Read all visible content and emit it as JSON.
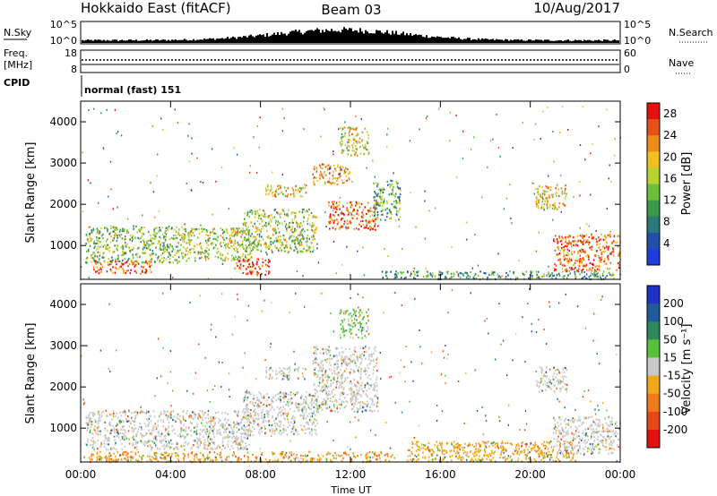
{
  "header": {
    "station": "Hokkaido East (fitACF)",
    "beam": "Beam 03",
    "date": "10/Aug/2017"
  },
  "top_strip": {
    "left_label_nsky": "N.Sky",
    "left_label_freq": "Freq.",
    "left_label_freq_unit": "[MHz]",
    "left_label_cpid": "CPID",
    "nsky_ticks": [
      "10^5",
      "10^0"
    ],
    "freq_ticks": [
      "18",
      "8"
    ],
    "right_label_nsearch": "N.Search",
    "right_label_nave": "Nave",
    "nsearch_ticks": [
      "10^5",
      "10^0"
    ],
    "nave_ticks": [
      "60",
      "0"
    ],
    "cpid_text": "normal (fast) 151"
  },
  "chart_data": [
    {
      "type": "heatmap",
      "panel": "power",
      "xlabel": "",
      "ylabel": "Slant Range [km]",
      "xlim": [
        0,
        24
      ],
      "ylim": [
        180,
        4500
      ],
      "yticks": [
        1000,
        2000,
        3000,
        4000
      ],
      "colorbar": {
        "label": "Power [dB]",
        "ticks": [
          4,
          8,
          12,
          16,
          20,
          24,
          28
        ],
        "range": [
          0,
          30
        ],
        "colors": [
          "#1f3ce0",
          "#2050a8",
          "#2a7a7a",
          "#3a9a4a",
          "#6cc13a",
          "#b8d230",
          "#f0c020",
          "#f08a18",
          "#e85018",
          "#e61010"
        ]
      },
      "echo_regions": [
        {
          "t0": 0.2,
          "t1": 4.6,
          "r0": 600,
          "r1": 1500,
          "mean": 14
        },
        {
          "t0": 0.5,
          "t1": 3.2,
          "r0": 350,
          "r1": 650,
          "mean": 26
        },
        {
          "t0": 4.5,
          "t1": 7.6,
          "r0": 650,
          "r1": 1450,
          "mean": 16
        },
        {
          "t0": 6.8,
          "t1": 8.4,
          "r0": 300,
          "r1": 700,
          "mean": 27
        },
        {
          "t0": 7.2,
          "t1": 10.5,
          "r0": 850,
          "r1": 1900,
          "mean": 15
        },
        {
          "t0": 8.2,
          "t1": 10.0,
          "r0": 2200,
          "r1": 2500,
          "mean": 20
        },
        {
          "t0": 10.3,
          "t1": 12.0,
          "r0": 2500,
          "r1": 3000,
          "mean": 22
        },
        {
          "t0": 11.0,
          "t1": 13.2,
          "r0": 1400,
          "r1": 2100,
          "mean": 24
        },
        {
          "t0": 13.0,
          "t1": 14.2,
          "r0": 1600,
          "r1": 2600,
          "mean": 12
        },
        {
          "t0": 11.5,
          "t1": 12.8,
          "r0": 3200,
          "r1": 3900,
          "mean": 18
        },
        {
          "t0": 13.3,
          "t1": 23.8,
          "r0": 200,
          "r1": 400,
          "mean": 10
        },
        {
          "t0": 20.2,
          "t1": 21.6,
          "r0": 1900,
          "r1": 2500,
          "mean": 20
        },
        {
          "t0": 21.0,
          "t1": 24.0,
          "r0": 400,
          "r1": 1300,
          "mean": 24
        }
      ]
    },
    {
      "type": "heatmap",
      "panel": "velocity",
      "xlabel": "Time UT",
      "ylabel": "Slant Range [km]",
      "xlim": [
        0,
        24
      ],
      "ylim": [
        180,
        4500
      ],
      "xticks": [
        "00:00",
        "04:00",
        "08:00",
        "12:00",
        "16:00",
        "20:00",
        "00:00"
      ],
      "yticks": [
        1000,
        2000,
        3000,
        4000
      ],
      "colorbar": {
        "label": "Velocity [m s⁻¹]",
        "ticks": [
          200,
          100,
          50,
          15,
          -15,
          -50,
          -100,
          -200
        ],
        "colors": [
          "#2030c8",
          "#205a9a",
          "#2e8a5a",
          "#58c03a",
          "#c8c8c8",
          "#f0a818",
          "#f07a18",
          "#e84818",
          "#e61010"
        ]
      },
      "echo_regions": [
        {
          "t0": 0.2,
          "t1": 7.6,
          "r0": 500,
          "r1": 1450,
          "mean": 0
        },
        {
          "t0": 7.2,
          "t1": 10.5,
          "r0": 850,
          "r1": 1900,
          "mean": -5
        },
        {
          "t0": 8.2,
          "t1": 10.0,
          "r0": 2200,
          "r1": 2500,
          "mean": 0
        },
        {
          "t0": 10.3,
          "t1": 13.2,
          "r0": 1400,
          "r1": 3000,
          "mean": 0
        },
        {
          "t0": 11.5,
          "t1": 12.8,
          "r0": 3200,
          "r1": 3900,
          "mean": 20
        },
        {
          "t0": 0.3,
          "t1": 14.0,
          "r0": 200,
          "r1": 450,
          "mean": -45
        },
        {
          "t0": 14.5,
          "t1": 22.0,
          "r0": 200,
          "r1": 700,
          "mean": -30
        },
        {
          "t0": 20.2,
          "t1": 21.6,
          "r0": 1900,
          "r1": 2500,
          "mean": 0
        },
        {
          "t0": 21.0,
          "t1": 24.0,
          "r0": 400,
          "r1": 1300,
          "mean": 0
        }
      ]
    }
  ]
}
